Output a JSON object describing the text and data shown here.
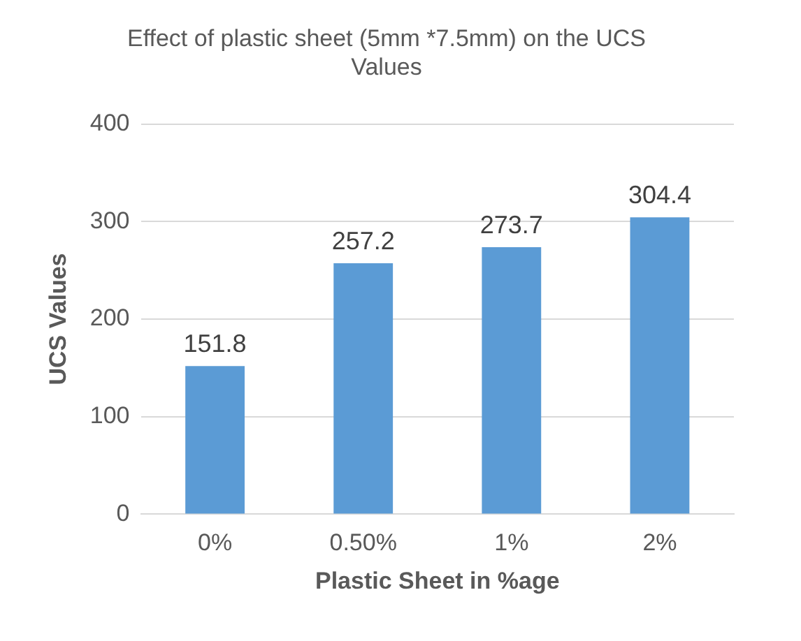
{
  "chart_data": {
    "type": "bar",
    "title": [
      "Effect of plastic sheet (5mm *7.5mm) on the UCS",
      "Values"
    ],
    "xlabel": "Plastic Sheet in %age",
    "ylabel": "UCS Values",
    "categories": [
      "0%",
      "0.50%",
      "1%",
      "2%"
    ],
    "values": [
      151.8,
      257.2,
      273.7,
      304.4
    ],
    "color": "#5b9bd5",
    "ylim": [
      0,
      400
    ],
    "yticks": [
      0,
      100,
      200,
      300,
      400
    ],
    "grid": "y",
    "data_labels": true
  }
}
